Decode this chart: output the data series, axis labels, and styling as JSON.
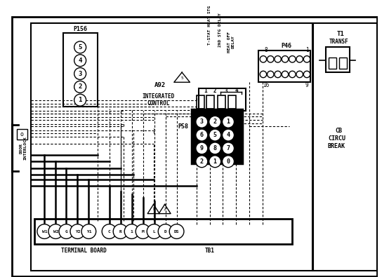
{
  "bg_color": "#ffffff",
  "line_color": "#000000",
  "p156_pins": [
    "5",
    "4",
    "3",
    "2",
    "1"
  ],
  "p58_pins": [
    [
      "3",
      "2",
      "1"
    ],
    [
      "6",
      "5",
      "4"
    ],
    [
      "9",
      "8",
      "7"
    ],
    [
      "2",
      "1",
      "0"
    ]
  ],
  "terminal_labels": [
    "W1",
    "W2",
    "G",
    "Y2",
    "Y1",
    "C",
    "R",
    "1",
    "M",
    "L",
    "D",
    "DS"
  ],
  "terminal_board_label": "TERMINAL BOARD",
  "tb1_label": "TB1",
  "p46_label": "P46",
  "t1_label": "T1\nTRANSF",
  "cb_label": "CB\nCIRCU\nBREAK"
}
